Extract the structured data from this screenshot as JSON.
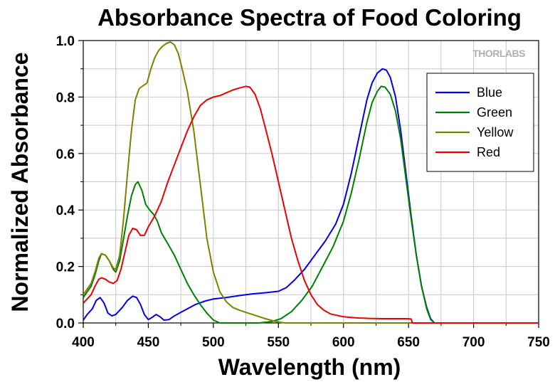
{
  "chart_data": {
    "type": "line",
    "title": "Absorbance Spectra of Food Coloring",
    "xlabel": "Wavelength (nm)",
    "ylabel": "Normalized Absorbance",
    "xlim": [
      400,
      750
    ],
    "ylim": [
      0.0,
      1.0
    ],
    "xticks": [
      400,
      450,
      500,
      550,
      600,
      650,
      700,
      750
    ],
    "yticks": [
      "0.0",
      "0.2",
      "0.4",
      "0.6",
      "0.8",
      "1.0"
    ],
    "grid": true,
    "legend_position": "top-right",
    "watermark": "THORLABS",
    "series": [
      {
        "name": "Blue",
        "color": "#0000ee",
        "points": [
          [
            400,
            0.01
          ],
          [
            403,
            0.03
          ],
          [
            407,
            0.05
          ],
          [
            410,
            0.08
          ],
          [
            413,
            0.09
          ],
          [
            416,
            0.07
          ],
          [
            419,
            0.035
          ],
          [
            422,
            0.025
          ],
          [
            425,
            0.03
          ],
          [
            430,
            0.055
          ],
          [
            434,
            0.08
          ],
          [
            438,
            0.095
          ],
          [
            441,
            0.09
          ],
          [
            444,
            0.065
          ],
          [
            447,
            0.03
          ],
          [
            450,
            0.012
          ],
          [
            453,
            0.02
          ],
          [
            456,
            0.03
          ],
          [
            459,
            0.022
          ],
          [
            462,
            0.01
          ],
          [
            466,
            0.012
          ],
          [
            470,
            0.025
          ],
          [
            478,
            0.045
          ],
          [
            486,
            0.065
          ],
          [
            494,
            0.078
          ],
          [
            500,
            0.085
          ],
          [
            510,
            0.09
          ],
          [
            520,
            0.097
          ],
          [
            530,
            0.103
          ],
          [
            540,
            0.107
          ],
          [
            550,
            0.112
          ],
          [
            556,
            0.125
          ],
          [
            562,
            0.15
          ],
          [
            570,
            0.19
          ],
          [
            578,
            0.24
          ],
          [
            586,
            0.29
          ],
          [
            594,
            0.35
          ],
          [
            600,
            0.42
          ],
          [
            606,
            0.53
          ],
          [
            612,
            0.66
          ],
          [
            618,
            0.79
          ],
          [
            622,
            0.85
          ],
          [
            626,
            0.885
          ],
          [
            630,
            0.9
          ],
          [
            633,
            0.895
          ],
          [
            636,
            0.87
          ],
          [
            640,
            0.8
          ],
          [
            644,
            0.68
          ],
          [
            648,
            0.53
          ],
          [
            652,
            0.38
          ],
          [
            656,
            0.24
          ],
          [
            660,
            0.13
          ],
          [
            664,
            0.055
          ],
          [
            667,
            0.015
          ],
          [
            670,
            0.0
          ],
          [
            680,
            0.0
          ],
          [
            700,
            0.0
          ],
          [
            750,
            0.0
          ]
        ]
      },
      {
        "name": "Green",
        "color": "#008000",
        "points": [
          [
            400,
            0.09
          ],
          [
            403,
            0.11
          ],
          [
            406,
            0.13
          ],
          [
            409,
            0.17
          ],
          [
            412,
            0.22
          ],
          [
            414,
            0.245
          ],
          [
            417,
            0.24
          ],
          [
            420,
            0.22
          ],
          [
            423,
            0.19
          ],
          [
            425,
            0.18
          ],
          [
            428,
            0.22
          ],
          [
            431,
            0.3
          ],
          [
            434,
            0.38
          ],
          [
            437,
            0.45
          ],
          [
            440,
            0.49
          ],
          [
            442,
            0.5
          ],
          [
            445,
            0.47
          ],
          [
            448,
            0.42
          ],
          [
            451,
            0.4
          ],
          [
            454,
            0.385
          ],
          [
            457,
            0.36
          ],
          [
            460,
            0.32
          ],
          [
            465,
            0.28
          ],
          [
            470,
            0.24
          ],
          [
            475,
            0.19
          ],
          [
            480,
            0.14
          ],
          [
            485,
            0.1
          ],
          [
            490,
            0.065
          ],
          [
            495,
            0.035
          ],
          [
            500,
            0.01
          ],
          [
            505,
            0.0
          ],
          [
            520,
            0.0
          ],
          [
            535,
            0.0
          ],
          [
            545,
            0.005
          ],
          [
            552,
            0.015
          ],
          [
            560,
            0.04
          ],
          [
            568,
            0.08
          ],
          [
            576,
            0.13
          ],
          [
            584,
            0.2
          ],
          [
            592,
            0.27
          ],
          [
            600,
            0.36
          ],
          [
            606,
            0.46
          ],
          [
            612,
            0.58
          ],
          [
            618,
            0.71
          ],
          [
            622,
            0.78
          ],
          [
            626,
            0.82
          ],
          [
            629,
            0.838
          ],
          [
            632,
            0.835
          ],
          [
            636,
            0.81
          ],
          [
            640,
            0.75
          ],
          [
            644,
            0.65
          ],
          [
            648,
            0.51
          ],
          [
            652,
            0.37
          ],
          [
            656,
            0.24
          ],
          [
            660,
            0.13
          ],
          [
            664,
            0.05
          ],
          [
            667,
            0.012
          ],
          [
            670,
            0.0
          ],
          [
            700,
            0.0
          ],
          [
            750,
            0.0
          ]
        ]
      },
      {
        "name": "Yellow",
        "color": "#808000",
        "points": [
          [
            400,
            0.1
          ],
          [
            403,
            0.12
          ],
          [
            406,
            0.14
          ],
          [
            409,
            0.18
          ],
          [
            412,
            0.23
          ],
          [
            414,
            0.245
          ],
          [
            417,
            0.24
          ],
          [
            420,
            0.22
          ],
          [
            423,
            0.195
          ],
          [
            425,
            0.19
          ],
          [
            428,
            0.24
          ],
          [
            431,
            0.37
          ],
          [
            434,
            0.53
          ],
          [
            437,
            0.68
          ],
          [
            440,
            0.79
          ],
          [
            443,
            0.83
          ],
          [
            446,
            0.84
          ],
          [
            449,
            0.85
          ],
          [
            452,
            0.9
          ],
          [
            455,
            0.94
          ],
          [
            458,
            0.965
          ],
          [
            461,
            0.98
          ],
          [
            464,
            0.99
          ],
          [
            467,
            0.995
          ],
          [
            470,
            0.985
          ],
          [
            473,
            0.955
          ],
          [
            476,
            0.9
          ],
          [
            480,
            0.82
          ],
          [
            485,
            0.68
          ],
          [
            490,
            0.49
          ],
          [
            495,
            0.3
          ],
          [
            500,
            0.18
          ],
          [
            505,
            0.11
          ],
          [
            510,
            0.075
          ],
          [
            515,
            0.055
          ],
          [
            520,
            0.045
          ],
          [
            530,
            0.03
          ],
          [
            540,
            0.015
          ],
          [
            548,
            0.005
          ],
          [
            555,
            0.0
          ],
          [
            750,
            0.0
          ]
        ]
      },
      {
        "name": "Red",
        "color": "#ee0000",
        "points": [
          [
            400,
            0.07
          ],
          [
            403,
            0.085
          ],
          [
            406,
            0.1
          ],
          [
            409,
            0.13
          ],
          [
            412,
            0.155
          ],
          [
            414,
            0.16
          ],
          [
            417,
            0.155
          ],
          [
            420,
            0.145
          ],
          [
            423,
            0.14
          ],
          [
            426,
            0.15
          ],
          [
            429,
            0.19
          ],
          [
            432,
            0.25
          ],
          [
            435,
            0.31
          ],
          [
            438,
            0.335
          ],
          [
            441,
            0.33
          ],
          [
            444,
            0.31
          ],
          [
            447,
            0.31
          ],
          [
            450,
            0.34
          ],
          [
            455,
            0.38
          ],
          [
            460,
            0.43
          ],
          [
            465,
            0.5
          ],
          [
            470,
            0.56
          ],
          [
            475,
            0.62
          ],
          [
            480,
            0.68
          ],
          [
            485,
            0.73
          ],
          [
            490,
            0.77
          ],
          [
            495,
            0.79
          ],
          [
            500,
            0.8
          ],
          [
            505,
            0.805
          ],
          [
            510,
            0.815
          ],
          [
            515,
            0.825
          ],
          [
            520,
            0.832
          ],
          [
            525,
            0.838
          ],
          [
            528,
            0.835
          ],
          [
            532,
            0.81
          ],
          [
            536,
            0.76
          ],
          [
            540,
            0.69
          ],
          [
            545,
            0.6
          ],
          [
            550,
            0.5
          ],
          [
            555,
            0.4
          ],
          [
            560,
            0.3
          ],
          [
            565,
            0.22
          ],
          [
            570,
            0.15
          ],
          [
            575,
            0.1
          ],
          [
            580,
            0.065
          ],
          [
            585,
            0.045
          ],
          [
            590,
            0.032
          ],
          [
            600,
            0.022
          ],
          [
            610,
            0.018
          ],
          [
            620,
            0.016
          ],
          [
            630,
            0.015
          ],
          [
            640,
            0.015
          ],
          [
            648,
            0.015
          ],
          [
            652,
            0.014
          ],
          [
            653,
            0.0
          ],
          [
            670,
            0.0
          ],
          [
            700,
            0.0
          ],
          [
            750,
            0.0
          ]
        ]
      }
    ]
  }
}
